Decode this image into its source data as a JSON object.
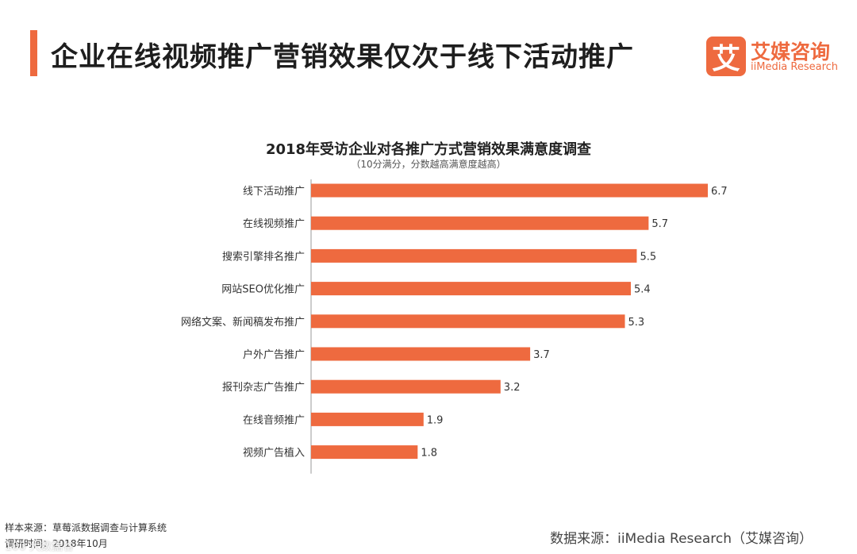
{
  "header": {
    "title": "企业在线视频推广营销效果仅次于线下活动推广"
  },
  "brand": {
    "logo_char": "艾",
    "name_cn": "艾媒咨询",
    "name_en": "iiMedia Research"
  },
  "colors": {
    "accent": "#ee6a3f",
    "bar": "#ee6a3f"
  },
  "chart_data": {
    "type": "bar",
    "orientation": "horizontal",
    "title": "2018年受访企业对各推广方式营销效果满意度调查",
    "subtitle": "（10分满分，分数越高满意度越高）",
    "categories": [
      "线下活动推广",
      "在线视频推广",
      "搜索引擎排名推广",
      "网站SEO优化推广",
      "网络文案、新闻稿发布推广",
      "户外广告推广",
      "报刊杂志广告推广",
      "在线音频推广",
      "视频广告植入"
    ],
    "values": [
      6.7,
      5.7,
      5.5,
      5.4,
      5.3,
      3.7,
      3.2,
      1.9,
      1.8
    ],
    "xlim": [
      0,
      6.7
    ],
    "grid": false,
    "legend": "none"
  },
  "footer": {
    "sample_source": "样本来源：草莓派数据调查与计算系统",
    "survey_time": "调研时间：2018年10月",
    "data_source": "数据来源：iiMedia Research（艾媒咨询）",
    "watermark": "100 大数据谷"
  }
}
